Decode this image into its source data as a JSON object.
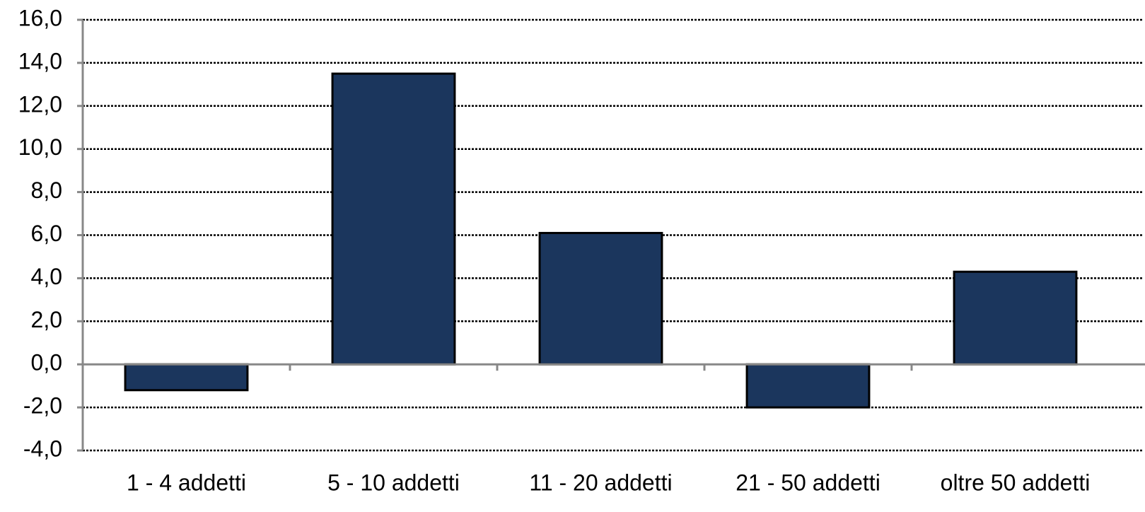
{
  "chart_data": {
    "type": "bar",
    "categories": [
      "1 - 4 addetti",
      "5 - 10 addetti",
      "11 - 20 addetti",
      "21 - 50 addetti",
      "oltre 50 addetti"
    ],
    "values": [
      -1.2,
      13.5,
      6.1,
      -2.0,
      4.3
    ],
    "color": "#1b365d",
    "ylim": [
      -4,
      16
    ],
    "yticks": [
      {
        "value": -4,
        "label": "-4,0"
      },
      {
        "value": -2,
        "label": "-2,0"
      },
      {
        "value": 0,
        "label": "0,0"
      },
      {
        "value": 2,
        "label": "2,0"
      },
      {
        "value": 4,
        "label": "4,0"
      },
      {
        "value": 6,
        "label": "6,0"
      },
      {
        "value": 8,
        "label": "8,0"
      },
      {
        "value": 10,
        "label": "10,0"
      },
      {
        "value": 12,
        "label": "12,0"
      },
      {
        "value": 14,
        "label": "14,0"
      },
      {
        "value": 16,
        "label": "16,0"
      }
    ],
    "grid": true
  }
}
